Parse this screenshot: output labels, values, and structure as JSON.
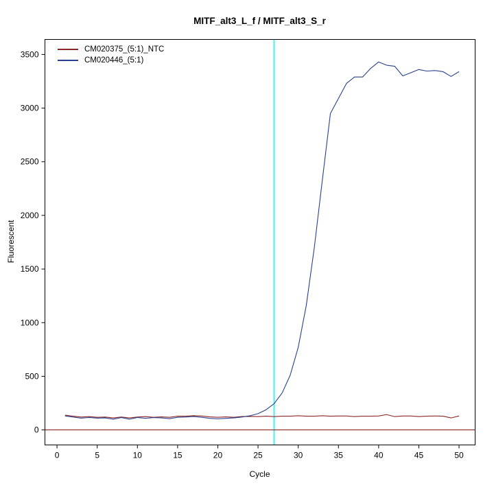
{
  "title": "MITF_alt3_L_f / MITF_alt3_S_r",
  "chart_data": {
    "type": "line",
    "title": "MITF_alt3_L_f / MITF_alt3_S_r",
    "xlabel": "Cycle",
    "ylabel": "Fluorescent",
    "x_range": [
      -1.5,
      52
    ],
    "y_range": [
      -140,
      3640
    ],
    "x_ticks": [
      0,
      5,
      10,
      15,
      20,
      25,
      30,
      35,
      40,
      45,
      50
    ],
    "y_ticks": [
      0,
      500,
      1000,
      1500,
      2000,
      2500,
      3000,
      3500
    ],
    "grid": false,
    "legend_position": "top-left",
    "cycles": [
      1,
      2,
      3,
      4,
      5,
      6,
      7,
      8,
      9,
      10,
      11,
      12,
      13,
      14,
      15,
      16,
      17,
      18,
      19,
      20,
      21,
      22,
      23,
      24,
      25,
      26,
      27,
      28,
      29,
      30,
      31,
      32,
      33,
      34,
      35,
      36,
      37,
      38,
      39,
      40,
      41,
      42,
      43,
      44,
      45,
      46,
      47,
      48,
      49,
      50
    ],
    "series": [
      {
        "name": "CM020375_(5:1)_NTC",
        "color": "#8b2626",
        "values": [
          138,
          128,
          120,
          124,
          118,
          120,
          112,
          120,
          112,
          120,
          124,
          118,
          122,
          118,
          128,
          128,
          133,
          130,
          122,
          118,
          122,
          118,
          125,
          126,
          124,
          128,
          124,
          128,
          128,
          132,
          128,
          128,
          132,
          128,
          130,
          130,
          124,
          128,
          128,
          130,
          143,
          124,
          130,
          130,
          124,
          128,
          130,
          128,
          112,
          130
        ]
      },
      {
        "name": "CM020446_(5:1)",
        "color": "#27408b",
        "values": [
          130,
          120,
          110,
          116,
          110,
          112,
          100,
          115,
          100,
          116,
          108,
          115,
          112,
          105,
          118,
          120,
          125,
          118,
          108,
          103,
          108,
          112,
          120,
          132,
          152,
          188,
          245,
          345,
          510,
          770,
          1160,
          1700,
          2330,
          2950,
          3090,
          3230,
          3290,
          3290,
          3370,
          3430,
          3400,
          3390,
          3300,
          3330,
          3360,
          3345,
          3350,
          3340,
          3295,
          3340
        ]
      }
    ],
    "threshold_line": {
      "x": 27,
      "color": "#00ffff"
    },
    "baseline": {
      "y": 0,
      "color": "#8b2626"
    }
  }
}
